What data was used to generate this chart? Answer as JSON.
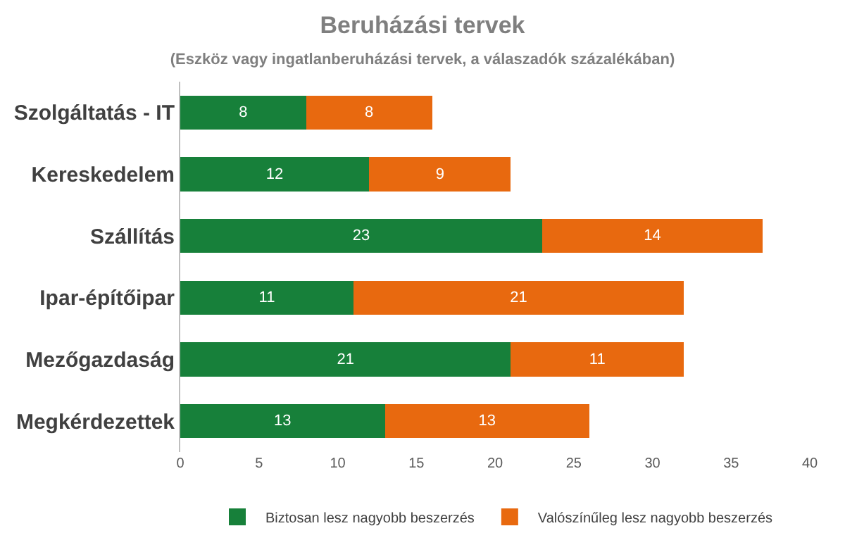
{
  "chart_data": {
    "type": "bar",
    "title": "Beruházási tervek",
    "subtitle": "(Eszköz vagy ingatlanberuházási tervek, a válaszadók százalékában)",
    "orientation": "horizontal",
    "stacked": true,
    "categories": [
      "Szolgáltatás - IT",
      "Kereskedelem",
      "Szállítás",
      "Ipar-építőipar",
      "Mezőgazdaság",
      "Megkérdezettek"
    ],
    "series": [
      {
        "name": "Biztosan lesz nagyobb beszerzés",
        "color": "#17803a",
        "values": [
          8,
          12,
          23,
          11,
          21,
          13
        ]
      },
      {
        "name": "Valószínűleg lesz nagyobb beszerzés",
        "color": "#e8690f",
        "values": [
          8,
          9,
          14,
          21,
          11,
          13
        ]
      }
    ],
    "xlim": [
      0,
      40
    ],
    "xticks": [
      0,
      5,
      10,
      15,
      20,
      25,
      30,
      35,
      40
    ],
    "data_labels": true,
    "legend": "bottom"
  }
}
